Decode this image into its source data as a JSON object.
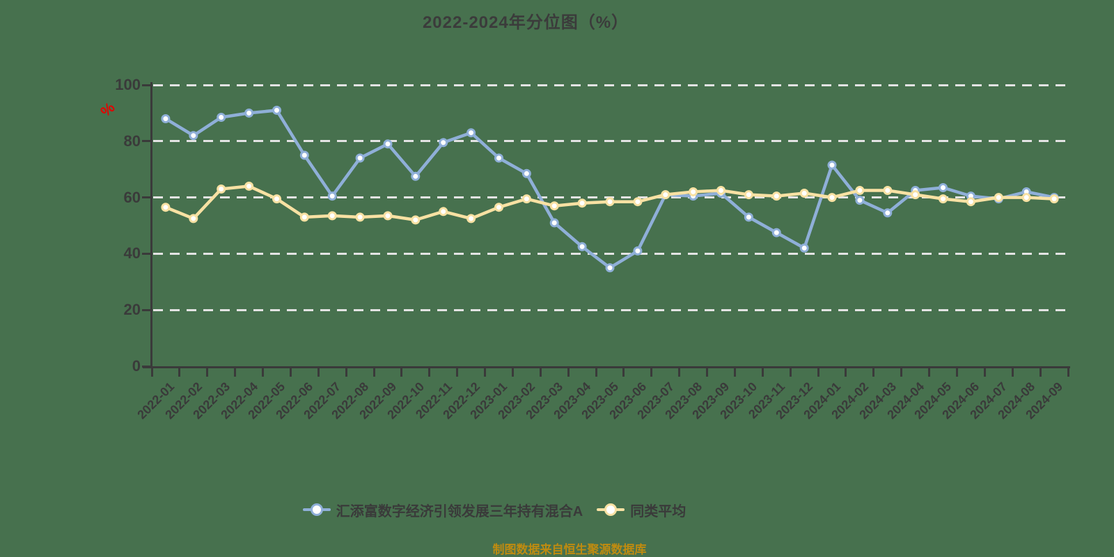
{
  "title": "2022-2024年分位图（%）",
  "footer": "制图数据来自恒生聚源数据库",
  "colors": {
    "background": "#47714E",
    "ink": "#3a3a3a",
    "grid": "#e3e3e3",
    "unit_red": "#e60000",
    "footer_gold": "#bf8b10",
    "series_fund": "#8FAFD8",
    "series_average": "#F8E1A3"
  },
  "legend": [
    {
      "label": "汇添富数字经济引领发展三年持有混合A",
      "color": "#8FAFD8"
    },
    {
      "label": "同类平均",
      "color": "#F8E1A3"
    }
  ],
  "chart_data": {
    "type": "line",
    "title": "2022-2024年分位图（%）",
    "unit": "%",
    "ylim": [
      0,
      100
    ],
    "yticks": [
      0,
      20,
      40,
      60,
      80,
      100
    ],
    "grid": "horizontal-dashed",
    "legend_position": "bottom",
    "x": [
      "2022-01",
      "2022-02",
      "2022-03",
      "2022-04",
      "2022-05",
      "2022-06",
      "2022-07",
      "2022-08",
      "2022-09",
      "2022-10",
      "2022-11",
      "2022-12",
      "2023-01",
      "2023-02",
      "2023-03",
      "2023-04",
      "2023-05",
      "2023-06",
      "2023-07",
      "2023-08",
      "2023-09",
      "2023-10",
      "2023-11",
      "2023-12",
      "2024-01",
      "2024-02",
      "2024-03",
      "2024-04",
      "2024-05",
      "2024-06",
      "2024-07",
      "2024-08",
      "2024-09"
    ],
    "series": [
      {
        "name": "汇添富数字经济引领发展三年持有混合A",
        "color": "#8FAFD8",
        "values": [
          88,
          82,
          88.5,
          90,
          91,
          75,
          60.5,
          74,
          79,
          67.5,
          79.5,
          83,
          74,
          68.5,
          51,
          42.5,
          35,
          41,
          61,
          60.5,
          61.5,
          53,
          47.5,
          42,
          71.5,
          59,
          54.5,
          62.5,
          63.5,
          60.5,
          59.5,
          62,
          60
        ]
      },
      {
        "name": "同类平均",
        "color": "#F8E1A3",
        "values": [
          56.5,
          52.5,
          63,
          64,
          59.5,
          53,
          53.5,
          53,
          53.5,
          52,
          55,
          52.5,
          56.5,
          59.5,
          57,
          58,
          58.5,
          58.5,
          61,
          62,
          62.5,
          61,
          60.5,
          61.5,
          60,
          62.5,
          62.5,
          61,
          59.5,
          58.5,
          60,
          60,
          59.5
        ]
      }
    ]
  }
}
